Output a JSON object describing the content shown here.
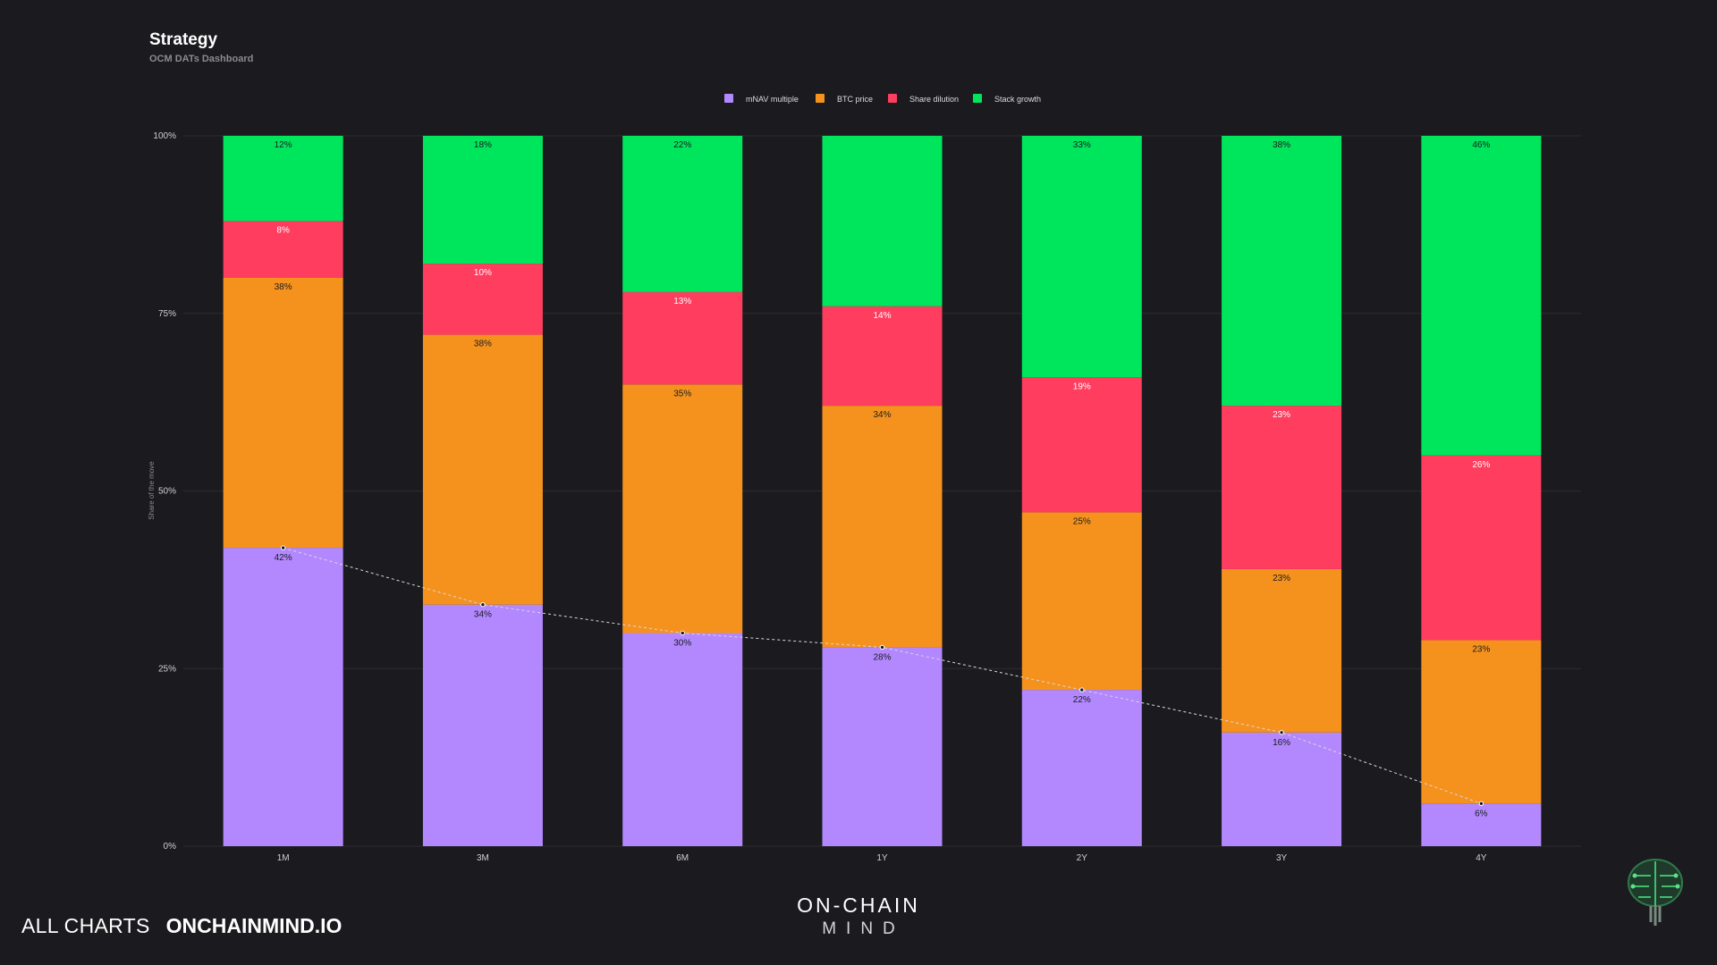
{
  "header": {
    "title": "Strategy",
    "subtitle": "OCM DATs Dashboard"
  },
  "chart_data": {
    "type": "bar",
    "stacked": true,
    "categories": [
      "1M",
      "3M",
      "6M",
      "1Y",
      "2Y",
      "3Y",
      "4Y"
    ],
    "series": [
      {
        "name": "mNAV multiple",
        "color": "#b388ff",
        "values": [
          42,
          34,
          30,
          28,
          22,
          16,
          6
        ],
        "labels": [
          "42%",
          "34%",
          "30%",
          "28%",
          "22%",
          "16%",
          "6%"
        ]
      },
      {
        "name": "BTC price",
        "color": "#f5921e",
        "values": [
          38,
          38,
          35,
          34,
          25,
          23,
          23
        ],
        "labels": [
          "38%",
          "38%",
          "35%",
          "34%",
          "25%",
          "23%",
          "23%"
        ]
      },
      {
        "name": "Share dilution",
        "color": "#ff3d5f",
        "values": [
          8,
          10,
          13,
          14,
          19,
          23,
          26
        ],
        "labels": [
          "8%",
          "10%",
          "13%",
          "14%",
          "19%",
          "23%",
          "26%"
        ]
      },
      {
        "name": "Stack growth",
        "color": "#00e65c",
        "values": [
          12,
          18,
          22,
          24,
          33,
          38,
          46
        ],
        "labels": [
          "12%",
          "18%",
          "22%",
          "",
          "33%",
          "38%",
          "46%"
        ]
      }
    ],
    "ylabel": "Share of the move",
    "ylim": [
      0,
      100
    ],
    "yticks": [
      "0%",
      "25%",
      "50%",
      "75%",
      "100%"
    ],
    "trend_line": "mNAV multiple",
    "legend_position": "top-center",
    "grid": true
  },
  "footer": {
    "all_charts": "ALL CHARTS",
    "site": "ONCHAINMIND.IO",
    "brand_top": "ON-CHAIN",
    "brand_bottom": "MIND"
  },
  "icons": {
    "logo": "brain-circuit-icon"
  }
}
